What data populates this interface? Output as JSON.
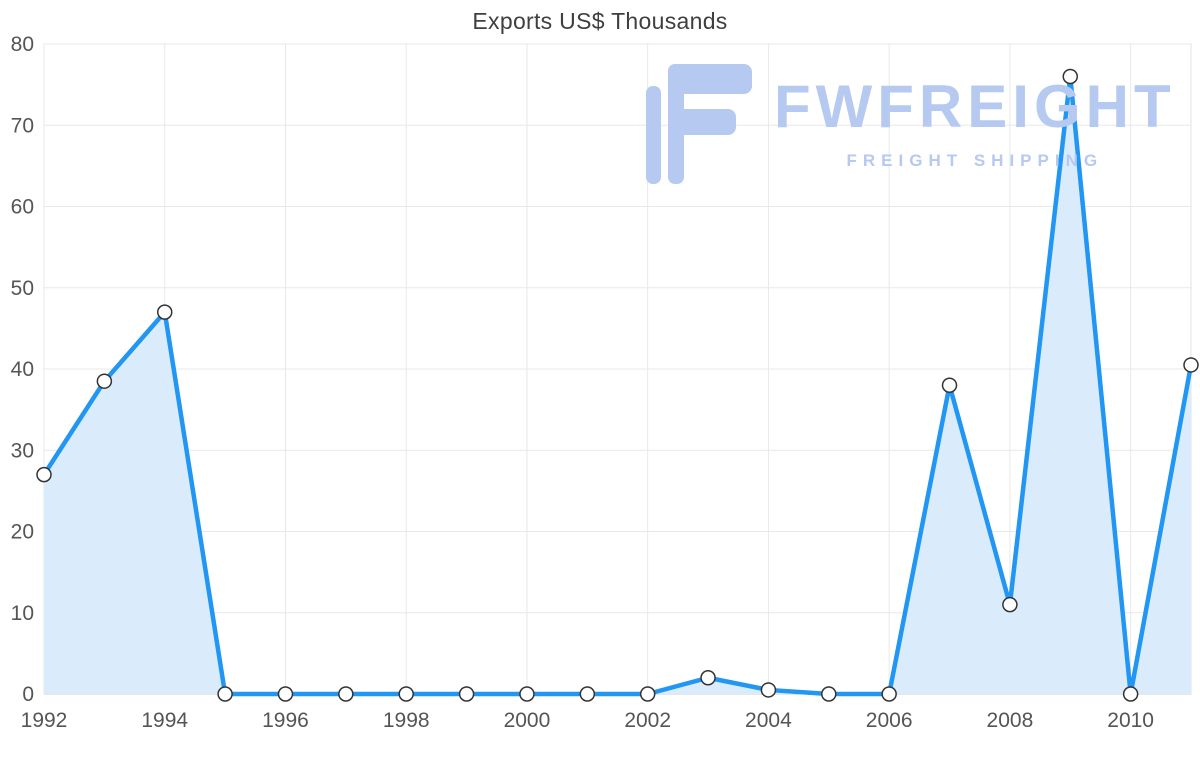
{
  "title": "Exports US$ Thousands",
  "watermark": {
    "brand": "FWFREIGHT",
    "tagline": "FREIGHT SHIPPING",
    "color": "#b5c9f1"
  },
  "chart_data": {
    "type": "area",
    "title": "Exports US$ Thousands",
    "xlabel": "",
    "ylabel": "",
    "x": [
      1992,
      1993,
      1994,
      1995,
      1996,
      1997,
      1998,
      1999,
      2000,
      2001,
      2002,
      2003,
      2004,
      2005,
      2006,
      2007,
      2008,
      2009,
      2010,
      2011
    ],
    "values": [
      27,
      38.5,
      47,
      0,
      0,
      0,
      0,
      0,
      0,
      0,
      0,
      2,
      0.5,
      0,
      0,
      38,
      11,
      76,
      0,
      40.5
    ],
    "ylim": [
      0,
      80
    ],
    "y_ticks": [
      0,
      10,
      20,
      30,
      40,
      50,
      60,
      70,
      80
    ],
    "x_tick_step": 2,
    "x_tick_labels": [
      "1992",
      "1994",
      "1996",
      "1998",
      "2000",
      "2002",
      "2004",
      "2006",
      "2008",
      "2010"
    ],
    "grid": true,
    "legend": "none",
    "line_color": "#2196f3",
    "fill_color": "#daecfc",
    "marker_fill": "#ffffff",
    "marker_stroke": "#333333",
    "axis_label_color": "#555555",
    "gridline_color": "#e8e8e8"
  }
}
